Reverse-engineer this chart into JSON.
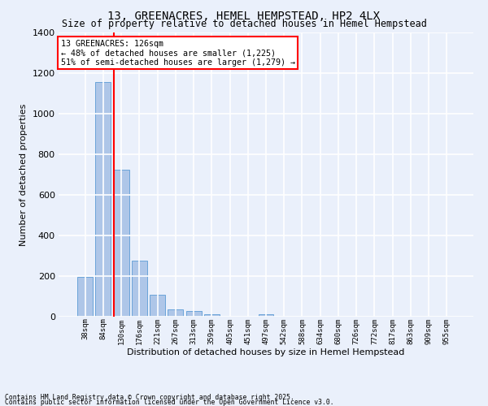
{
  "title": "13, GREENACRES, HEMEL HEMPSTEAD, HP2 4LX",
  "subtitle": "Size of property relative to detached houses in Hemel Hempstead",
  "xlabel": "Distribution of detached houses by size in Hemel Hempstead",
  "ylabel": "Number of detached properties",
  "categories": [
    "38sqm",
    "84sqm",
    "130sqm",
    "176sqm",
    "221sqm",
    "267sqm",
    "313sqm",
    "359sqm",
    "405sqm",
    "451sqm",
    "497sqm",
    "542sqm",
    "588sqm",
    "634sqm",
    "680sqm",
    "726sqm",
    "772sqm",
    "817sqm",
    "863sqm",
    "909sqm",
    "955sqm"
  ],
  "values": [
    197,
    1158,
    725,
    275,
    107,
    35,
    28,
    12,
    0,
    0,
    14,
    0,
    0,
    0,
    0,
    0,
    0,
    0,
    0,
    0,
    0
  ],
  "bar_color": "#aec6e8",
  "bar_edge_color": "#5b9bd5",
  "vline_color": "red",
  "vline_x_index": 2,
  "annotation_text": "13 GREENACRES: 126sqm\n← 48% of detached houses are smaller (1,225)\n51% of semi-detached houses are larger (1,279) →",
  "annotation_box_color": "white",
  "annotation_box_edge": "red",
  "bg_color": "#eaf0fb",
  "grid_color": "white",
  "ylim": [
    0,
    1400
  ],
  "yticks": [
    0,
    200,
    400,
    600,
    800,
    1000,
    1200,
    1400
  ],
  "footer1": "Contains HM Land Registry data © Crown copyright and database right 2025.",
  "footer2": "Contains public sector information licensed under the Open Government Licence v3.0."
}
